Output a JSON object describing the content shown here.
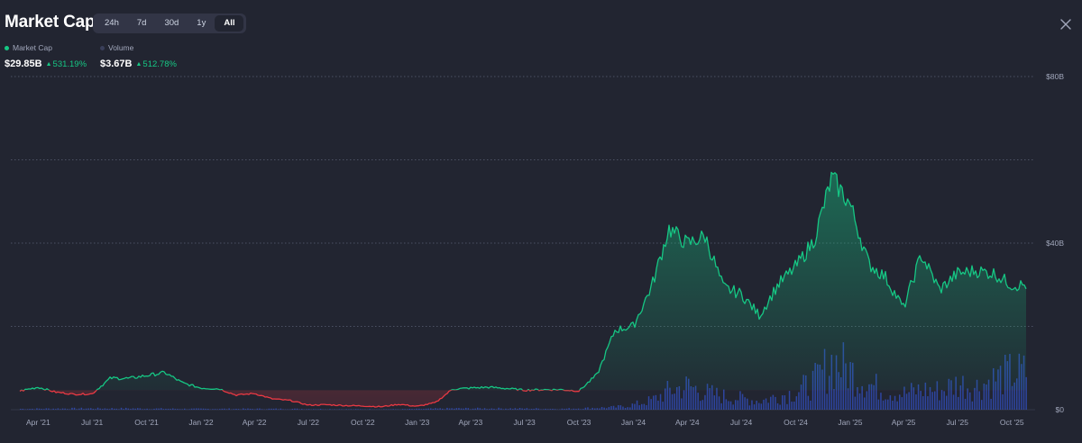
{
  "header": {
    "title": "Market Cap",
    "ranges": [
      "24h",
      "7d",
      "30d",
      "1y",
      "All"
    ],
    "active_range": "All"
  },
  "legend": {
    "market_cap": {
      "label": "Market Cap",
      "value": "$29.85B",
      "change": "531.19%",
      "color": "#16c784"
    },
    "volume": {
      "label": "Volume",
      "value": "$3.67B",
      "change": "512.78%",
      "color": "#3861fb"
    }
  },
  "icons": {
    "close": "close-icon",
    "up": "triangle-up-icon"
  },
  "colors": {
    "up": "#16c784",
    "down": "#ea3943",
    "volume": "#3861fb",
    "background": "#222531"
  },
  "chart_data": {
    "type": "area",
    "y_tick_labels": [
      "$0",
      "$40B",
      "$80B"
    ],
    "ylim": [
      0,
      80
    ],
    "y_unit": "B",
    "grid": true,
    "grid_values": [
      20,
      40,
      60,
      80
    ],
    "baseline": 4.7,
    "x_tick_labels": [
      "Apr '21",
      "Jul '21",
      "Oct '21",
      "Jan '22",
      "Apr '22",
      "Jul '22",
      "Oct '22",
      "Jan '23",
      "Apr '23",
      "Jul '23",
      "Oct '23",
      "Jan '24",
      "Apr '24",
      "Jul '24",
      "Oct '24",
      "Jan '25",
      "Apr '25",
      "Jul '25",
      "Oct '25"
    ],
    "x_tick_dates": [
      "2021-04",
      "2021-07",
      "2021-10",
      "2022-01",
      "2022-04",
      "2022-07",
      "2022-10",
      "2023-01",
      "2023-04",
      "2023-07",
      "2023-10",
      "2024-01",
      "2024-04",
      "2024-07",
      "2024-10",
      "2025-01",
      "2025-04",
      "2025-07",
      "2025-10"
    ],
    "series": [
      {
        "name": "Market Cap",
        "x": [
          "2021-03",
          "2021-04",
          "2021-05",
          "2021-06",
          "2021-07",
          "2021-08",
          "2021-09",
          "2021-10",
          "2021-11",
          "2021-12",
          "2022-01",
          "2022-02",
          "2022-03",
          "2022-04",
          "2022-05",
          "2022-06",
          "2022-07",
          "2022-08",
          "2022-09",
          "2022-10",
          "2022-11",
          "2022-12",
          "2023-01",
          "2023-02",
          "2023-03",
          "2023-04",
          "2023-05",
          "2023-06",
          "2023-07",
          "2023-08",
          "2023-09",
          "2023-10",
          "2023-11",
          "2023-12",
          "2024-01",
          "2024-02",
          "2024-03",
          "2024-04",
          "2024-05",
          "2024-06",
          "2024-07",
          "2024-08",
          "2024-09",
          "2024-10",
          "2024-11",
          "2024-12",
          "2025-01",
          "2025-02",
          "2025-03",
          "2025-04",
          "2025-05",
          "2025-06",
          "2025-07",
          "2025-08",
          "2025-09",
          "2025-10"
        ],
        "values": [
          4.5,
          5.4,
          4.2,
          3.7,
          3.8,
          7.6,
          7.5,
          8.2,
          8.9,
          6.4,
          5.2,
          5.0,
          3.5,
          3.9,
          2.6,
          2.2,
          1.1,
          1.2,
          1.0,
          0.9,
          0.7,
          1.3,
          0.8,
          1.7,
          4.9,
          5.2,
          5.4,
          5.1,
          4.7,
          4.8,
          4.8,
          4.5,
          8.5,
          19.1,
          20.1,
          29.7,
          43.5,
          39.8,
          41.7,
          29.3,
          27.8,
          22.6,
          30.0,
          34.3,
          40.7,
          55.7,
          49.3,
          35.1,
          31.9,
          24.4,
          37.2,
          28.8,
          32.7,
          33.4,
          32.7,
          29.9
        ]
      },
      {
        "name": "Volume",
        "x": [
          "2021-03",
          "2021-06",
          "2021-09",
          "2021-12",
          "2022-03",
          "2022-06",
          "2022-09",
          "2022-12",
          "2023-03",
          "2023-06",
          "2023-09",
          "2023-12",
          "2024-01",
          "2024-02",
          "2024-03",
          "2024-04",
          "2024-05",
          "2024-06",
          "2024-07",
          "2024-08",
          "2024-09",
          "2024-10",
          "2024-11",
          "2024-12",
          "2025-01",
          "2025-02",
          "2025-03",
          "2025-04",
          "2025-05",
          "2025-06",
          "2025-07",
          "2025-08",
          "2025-09",
          "2025-10"
        ],
        "values": [
          0.2,
          0.3,
          0.3,
          0.2,
          0.2,
          0.2,
          0.1,
          0.1,
          0.3,
          0.3,
          0.2,
          0.6,
          1.2,
          2.3,
          4.6,
          5.7,
          4.1,
          3.2,
          2.7,
          2.1,
          3.3,
          4.3,
          6.7,
          11.7,
          9.2,
          6.1,
          4.6,
          3.9,
          4.8,
          4.6,
          6.3,
          5.5,
          7.4,
          8.8
        ]
      }
    ]
  }
}
